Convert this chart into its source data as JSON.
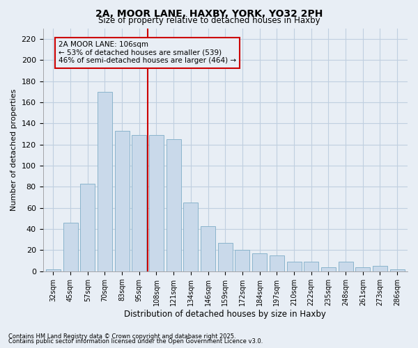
{
  "title_line1": "2A, MOOR LANE, HAXBY, YORK, YO32 2PH",
  "title_line2": "Size of property relative to detached houses in Haxby",
  "xlabel": "Distribution of detached houses by size in Haxby",
  "ylabel": "Number of detached properties",
  "categories": [
    "32sqm",
    "45sqm",
    "57sqm",
    "70sqm",
    "83sqm",
    "95sqm",
    "108sqm",
    "121sqm",
    "134sqm",
    "146sqm",
    "159sqm",
    "172sqm",
    "184sqm",
    "197sqm",
    "210sqm",
    "222sqm",
    "235sqm",
    "248sqm",
    "261sqm",
    "273sqm",
    "286sqm"
  ],
  "values": [
    2,
    46,
    83,
    170,
    133,
    129,
    129,
    125,
    65,
    43,
    27,
    20,
    17,
    15,
    9,
    9,
    4,
    9,
    4,
    5,
    2
  ],
  "bar_fill": "#c9d9ea",
  "bar_edge": "#8ab4cc",
  "grid_color": "#c0cfe0",
  "bg_color": "#e8eef5",
  "vline_x_index": 6,
  "vline_color": "#cc0000",
  "annotation_text": "2A MOOR LANE: 106sqm\n← 53% of detached houses are smaller (539)\n46% of semi-detached houses are larger (464) →",
  "annotation_box_color": "#cc0000",
  "ylim": [
    0,
    230
  ],
  "yticks": [
    0,
    20,
    40,
    60,
    80,
    100,
    120,
    140,
    160,
    180,
    200,
    220
  ],
  "footnote_line1": "Contains HM Land Registry data © Crown copyright and database right 2025.",
  "footnote_line2": "Contains public sector information licensed under the Open Government Licence v3.0."
}
